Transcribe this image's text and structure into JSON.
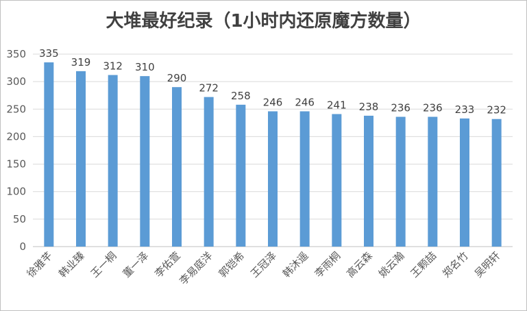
{
  "chart_data": {
    "type": "bar",
    "title": "大堆最好纪录（1小时内还原魔方数量）",
    "categories": [
      "徐雅芊",
      "韩业臻",
      "王一桐",
      "董一泽",
      "李佑萱",
      "李易庭洋",
      "郭铠希",
      "王冠泽",
      "韩沐遥",
      "李雨桐",
      "高云森",
      "姚云瀚",
      "王颗喆",
      "郑名竹",
      "吴明轩"
    ],
    "values": [
      335,
      319,
      312,
      310,
      290,
      272,
      258,
      246,
      246,
      241,
      238,
      236,
      236,
      233,
      232
    ],
    "yticks": [
      0,
      50,
      100,
      150,
      200,
      250,
      300,
      350
    ],
    "ylim": [
      0,
      350
    ],
    "grid": true,
    "legend": false,
    "bar_color": "#5b9bd5"
  }
}
